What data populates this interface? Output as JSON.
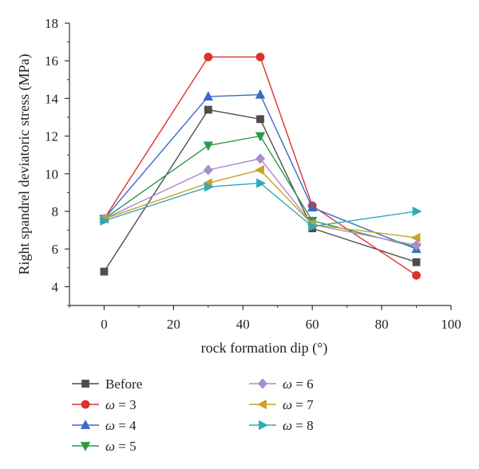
{
  "chart_data": {
    "type": "line",
    "title": "",
    "xlabel": "rock formation dip (°)",
    "ylabel": "Right spandrel deviatoric stress (MPa)",
    "xlim": [
      -10,
      100
    ],
    "ylim": [
      3,
      18
    ],
    "xticks": [
      0,
      20,
      40,
      60,
      80,
      100
    ],
    "yticks": [
      4,
      6,
      8,
      10,
      12,
      14,
      16,
      18
    ],
    "x": [
      0,
      30,
      45,
      60,
      90
    ],
    "grid": false,
    "legend_position": "bottom",
    "series": [
      {
        "name": "Before",
        "values": [
          4.8,
          13.4,
          12.9,
          7.1,
          5.3
        ],
        "color": "#4d4d4d",
        "marker": "square"
      },
      {
        "name": "ω = 3",
        "prefix": "ω",
        "suffix": " = 3",
        "values": [
          7.6,
          16.2,
          16.2,
          8.3,
          4.6
        ],
        "color": "#d9342b",
        "marker": "circle"
      },
      {
        "name": "ω = 4",
        "prefix": "ω",
        "suffix": " = 4",
        "values": [
          7.6,
          14.1,
          14.2,
          8.2,
          6.0
        ],
        "color": "#3b6bc8",
        "marker": "triangle-up"
      },
      {
        "name": "ω = 5",
        "prefix": "ω",
        "suffix": " = 5",
        "values": [
          7.6,
          11.5,
          12.0,
          7.5,
          6.1
        ],
        "color": "#2b9a48",
        "marker": "triangle-down"
      },
      {
        "name": "ω = 6",
        "prefix": "ω",
        "suffix": " = 6",
        "values": [
          7.6,
          10.2,
          10.8,
          7.3,
          6.2
        ],
        "color": "#a98bd2",
        "marker": "diamond"
      },
      {
        "name": "ω = 7",
        "prefix": "ω",
        "suffix": " = 7",
        "values": [
          7.6,
          9.5,
          10.2,
          7.3,
          6.6
        ],
        "color": "#c9a227",
        "marker": "triangle-left"
      },
      {
        "name": "ω = 8",
        "prefix": "ω",
        "suffix": " = 8",
        "values": [
          7.5,
          9.3,
          9.5,
          7.2,
          8.0
        ],
        "color": "#33a9b8",
        "marker": "triangle-right"
      }
    ]
  }
}
